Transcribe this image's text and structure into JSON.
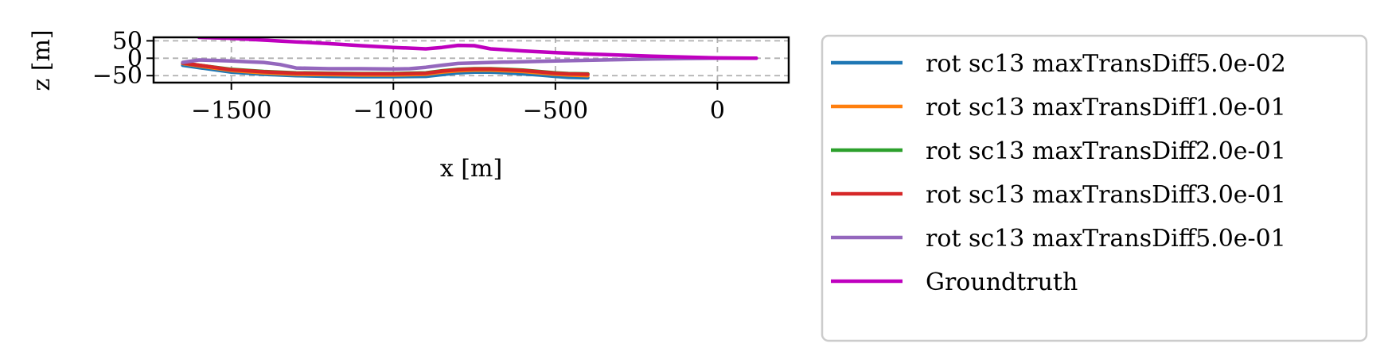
{
  "chart_data": {
    "type": "line",
    "xlabel": "x [m]",
    "ylabel": "z [m]",
    "xlim": [
      -1740,
      220
    ],
    "ylim": [
      -70,
      60
    ],
    "xticks": [
      -1500,
      -1000,
      -500,
      0
    ],
    "xtick_labels": [
      "−1500",
      "−1000",
      "−500",
      "0"
    ],
    "yticks": [
      -50,
      0,
      50
    ],
    "ytick_labels": [
      "−50",
      "0",
      "50"
    ],
    "grid": true,
    "legend_position": "outside-right",
    "series": [
      {
        "name": "rot sc13 maxTransDiff5.0e-02",
        "color": "#1f77b4",
        "x": [
          -1650,
          -1600,
          -1500,
          -1400,
          -1300,
          -1200,
          -1100,
          -1000,
          -900,
          -850,
          -800,
          -750,
          -700,
          -650,
          -600,
          -550,
          -500,
          -460,
          -400
        ],
        "y": [
          -20,
          -27,
          -40,
          -46,
          -50,
          -52,
          -53,
          -53,
          -52,
          -47,
          -42,
          -40,
          -40,
          -42,
          -45,
          -48,
          -52,
          -55,
          -56
        ]
      },
      {
        "name": "rot sc13 maxTransDiff1.0e-01",
        "color": "#ff7f0e",
        "x": [
          -1650,
          -1600,
          -1500,
          -1400,
          -1300,
          -1200,
          -1100,
          -1000,
          -900,
          -850,
          -800,
          -750,
          -700,
          -650,
          -600,
          -550,
          -500,
          -460,
          -400
        ],
        "y": [
          -15,
          -22,
          -35,
          -42,
          -46,
          -47,
          -48,
          -48,
          -46,
          -40,
          -36,
          -34,
          -34,
          -36,
          -38,
          -42,
          -46,
          -48,
          -50
        ]
      },
      {
        "name": "rot sc13 maxTransDiff2.0e-01",
        "color": "#2ca02c",
        "x": [
          -1650,
          -1600,
          -1500,
          -1400,
          -1300,
          -1200,
          -1100,
          -1000,
          -900,
          -850,
          -800,
          -750,
          -700,
          -650,
          -600,
          -550,
          -500,
          -460,
          -400
        ],
        "y": [
          -14,
          -20,
          -32,
          -38,
          -42,
          -43,
          -44,
          -44,
          -42,
          -36,
          -32,
          -30,
          -30,
          -32,
          -34,
          -38,
          -42,
          -44,
          -45
        ]
      },
      {
        "name": "rot sc13 maxTransDiff3.0e-01",
        "color": "#d62728",
        "x": [
          -1650,
          -1600,
          -1500,
          -1400,
          -1300,
          -1200,
          -1100,
          -1000,
          -900,
          -850,
          -800,
          -750,
          -700,
          -650,
          -600,
          -550,
          -500,
          -460,
          -400
        ],
        "y": [
          -14,
          -20,
          -33,
          -39,
          -43,
          -44,
          -45,
          -45,
          -43,
          -37,
          -33,
          -31,
          -31,
          -33,
          -35,
          -39,
          -43,
          -45,
          -46
        ]
      },
      {
        "name": "rot sc13 maxTransDiff5.0e-01",
        "color": "#9467bd",
        "x": [
          -1650,
          -1600,
          -1500,
          -1450,
          -1400,
          -1350,
          -1300,
          -1200,
          -1100,
          -1000,
          -950,
          -900,
          -850,
          -800,
          -700,
          -600,
          -500,
          -400,
          -200,
          0,
          100,
          120
        ],
        "y": [
          -12,
          -5,
          -8,
          -10,
          -12,
          -18,
          -28,
          -30,
          -30,
          -31,
          -30,
          -26,
          -20,
          -15,
          -12,
          -10,
          -8,
          -6,
          -2,
          0,
          0,
          0
        ]
      },
      {
        "name": "Groundtruth",
        "color": "#bf00bf",
        "x": [
          -1600,
          -1500,
          -1400,
          -1300,
          -1200,
          -1100,
          -1000,
          -900,
          -850,
          -800,
          -750,
          -700,
          -600,
          -500,
          -400,
          -200,
          0,
          100,
          120
        ],
        "y": [
          60,
          57,
          52,
          47,
          42,
          36,
          31,
          27,
          31,
          37,
          36,
          27,
          21,
          16,
          12,
          6,
          1,
          0,
          0
        ]
      }
    ]
  }
}
